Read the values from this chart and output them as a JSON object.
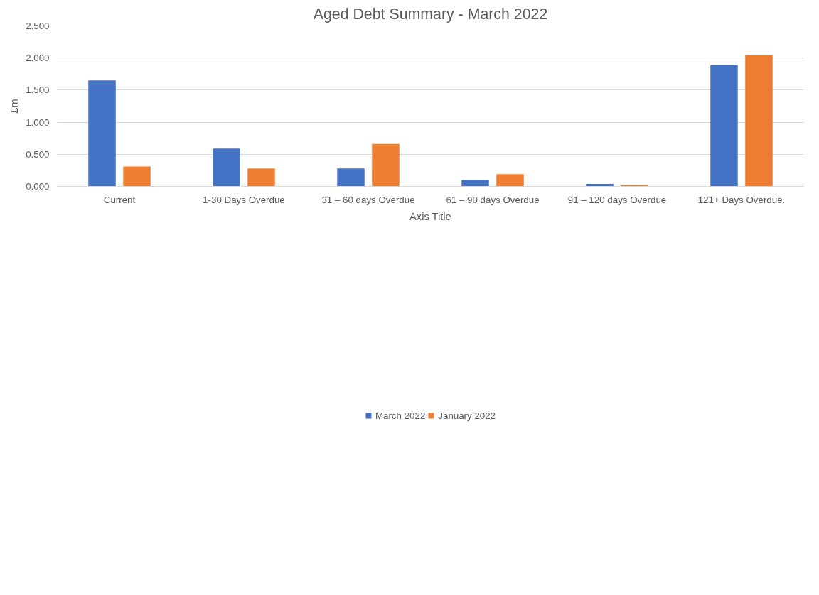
{
  "chart_data": {
    "type": "bar",
    "title": "Aged Debt Summary - March 2022",
    "xlabel": "Axis Title",
    "ylabel": "£m",
    "categories": [
      "Current",
      "1-30 Days Overdue",
      "31 – 60 days Overdue",
      "61 – 90 days Overdue",
      "91 – 120 days Overdue",
      "121+ Days Overdue."
    ],
    "series": [
      {
        "name": "March 2022",
        "color": "#4472c4",
        "values": [
          1.65,
          0.59,
          0.28,
          0.1,
          0.04,
          1.89
        ]
      },
      {
        "name": "January 2022",
        "color": "#ed7d31",
        "values": [
          0.31,
          0.28,
          0.66,
          0.19,
          0.02,
          2.04
        ]
      }
    ],
    "ylim": [
      0,
      2.5
    ],
    "yticks": [
      {
        "value": 0,
        "label": "0.000"
      },
      {
        "value": 0.5,
        "label": "0.500"
      },
      {
        "value": 1,
        "label": "1.000"
      },
      {
        "value": 1.5,
        "label": "1.500"
      },
      {
        "value": 2,
        "label": "2.000"
      },
      {
        "value": 2.5,
        "label": "2.500"
      }
    ],
    "grid": "y",
    "legend": "bottom"
  }
}
